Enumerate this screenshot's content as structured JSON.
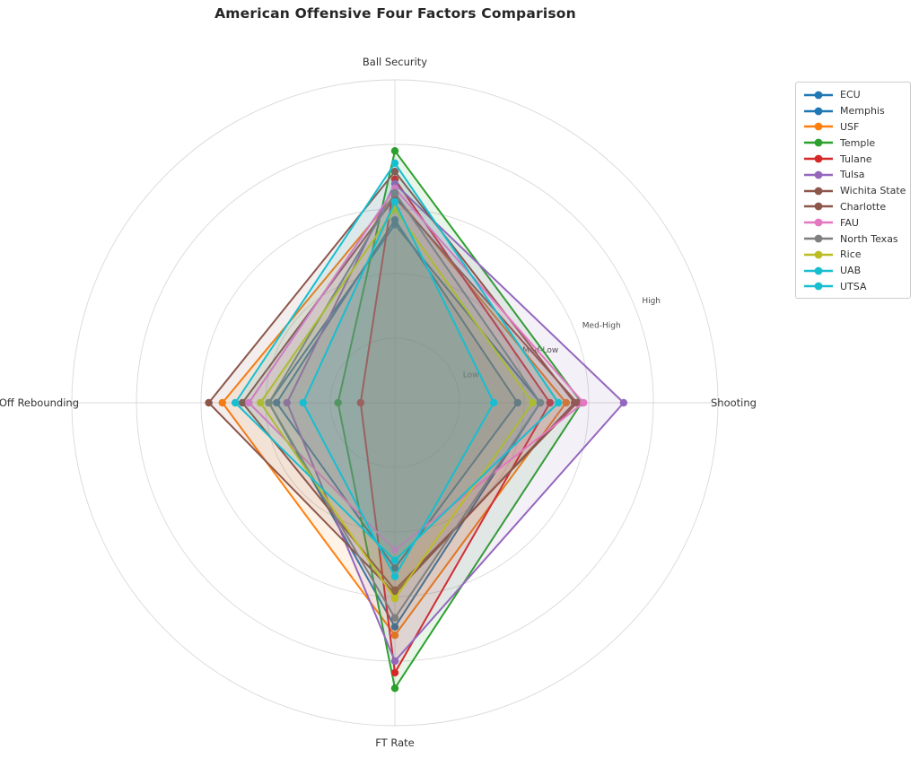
{
  "title": "American Offensive Four Factors Comparison",
  "chart_data": {
    "type": "radar",
    "categories": [
      "Ball Security",
      "Shooting",
      "FT Rate",
      "Off Rebounding"
    ],
    "axis_angles_deg": [
      90,
      0,
      270,
      180
    ],
    "r_max": 5,
    "grid": true,
    "radial_ticks": [
      {
        "value": 1,
        "label": "Low"
      },
      {
        "value": 2,
        "label": "Med-Low"
      },
      {
        "value": 3,
        "label": "Med-High"
      },
      {
        "value": 4,
        "label": "High"
      }
    ],
    "legend_position": "upper right",
    "series": [
      {
        "name": "ECU",
        "color": "#1f77b4",
        "values": [
          2.83,
          1.9,
          2.56,
          1.83
        ]
      },
      {
        "name": "Memphis",
        "color": "#1f77b4",
        "values": [
          2.76,
          2.25,
          3.47,
          1.95
        ]
      },
      {
        "name": "USF",
        "color": "#ff7f0e",
        "values": [
          3.22,
          2.65,
          3.6,
          2.67
        ]
      },
      {
        "name": "Temple",
        "color": "#2ca02c",
        "values": [
          3.9,
          2.89,
          4.42,
          0.88
        ]
      },
      {
        "name": "Tulane",
        "color": "#d62728",
        "values": [
          3.46,
          2.4,
          4.18,
          0.53
        ]
      },
      {
        "name": "Tulsa",
        "color": "#9467bd",
        "values": [
          3.39,
          3.54,
          4.0,
          1.67
        ]
      },
      {
        "name": "Wichita State",
        "color": "#8c564b",
        "values": [
          3.58,
          2.78,
          2.95,
          2.88
        ]
      },
      {
        "name": "Charlotte",
        "color": "#8c564b",
        "values": [
          3.18,
          2.82,
          2.9,
          2.36
        ]
      },
      {
        "name": "FAU",
        "color": "#e377c2",
        "values": [
          3.32,
          2.92,
          2.28,
          2.26
        ]
      },
      {
        "name": "North Texas",
        "color": "#7f7f7f",
        "values": [
          3.25,
          2.25,
          3.33,
          1.95
        ]
      },
      {
        "name": "Rice",
        "color": "#bcbd22",
        "values": [
          3.0,
          2.13,
          3.03,
          2.08
        ]
      },
      {
        "name": "UAB",
        "color": "#17becf",
        "values": [
          3.71,
          2.53,
          2.44,
          2.47
        ]
      },
      {
        "name": "UTSA",
        "color": "#17becf",
        "values": [
          3.11,
          1.53,
          2.69,
          1.42
        ]
      }
    ],
    "style": {
      "grid_color": "#d9d9d9",
      "axis_label_color": "#333333",
      "tick_label_color": "#4d4d4d",
      "fill_opacity": 0.1,
      "line_width": 2
    }
  }
}
